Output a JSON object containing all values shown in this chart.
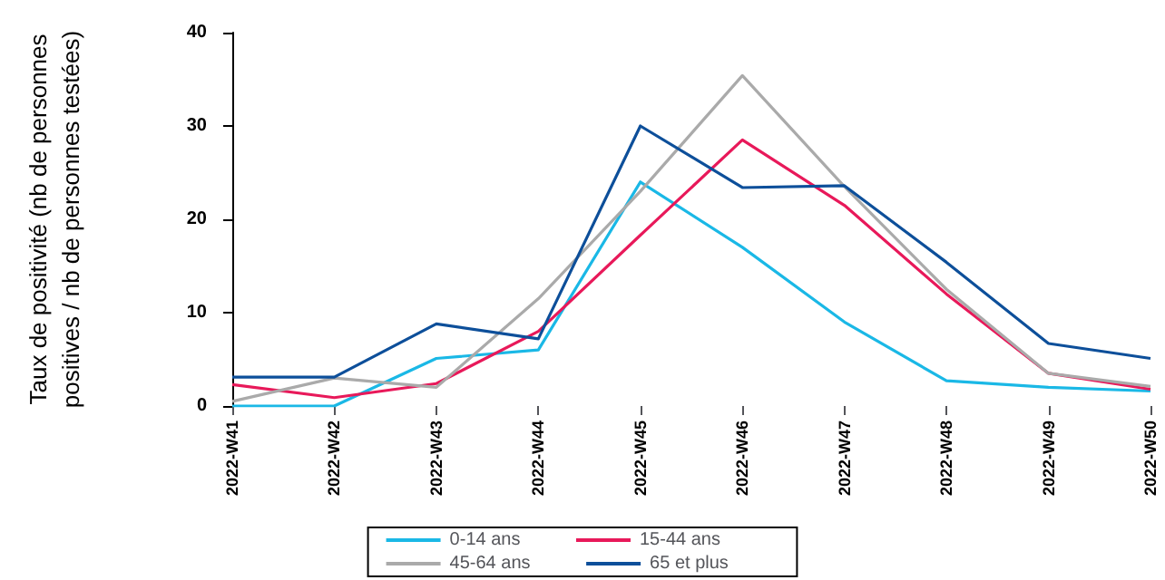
{
  "chart_data": {
    "type": "line",
    "ylabel": "Taux de positivité (nb de personnes\npositives / nb de personnes testées)",
    "categories": [
      "2022-W41",
      "2022-W42",
      "2022-W43",
      "2022-W44",
      "2022-W45",
      "2022-W46",
      "2022-W47",
      "2022-W48",
      "2022-W49",
      "2022-W50"
    ],
    "series": [
      {
        "name": "0-14 ans",
        "color": "#1ab8e6",
        "values": [
          0,
          0,
          5.1,
          6,
          24,
          17,
          9,
          2.7,
          2,
          1.6
        ]
      },
      {
        "name": "15-44 ans",
        "color": "#e8195a",
        "values": [
          2.3,
          0.9,
          2.4,
          8,
          18.3,
          28.5,
          21.5,
          12,
          3.5,
          1.8
        ]
      },
      {
        "name": "45-64 ans",
        "color": "#aaaaaa",
        "values": [
          0.5,
          3,
          2,
          11.5,
          23,
          35.4,
          23.5,
          12.5,
          3.5,
          2.1
        ]
      },
      {
        "name": "65 et plus",
        "color": "#0d4f9a",
        "values": [
          3.1,
          3.1,
          8.8,
          7.2,
          30,
          23.4,
          23.6,
          15.4,
          6.7,
          5.1
        ]
      }
    ],
    "ylim": [
      0,
      40
    ],
    "yticks": [
      0,
      10,
      20,
      30,
      40
    ],
    "grid": false,
    "legend": "bottom",
    "marker": "none",
    "line_style": "solid"
  }
}
